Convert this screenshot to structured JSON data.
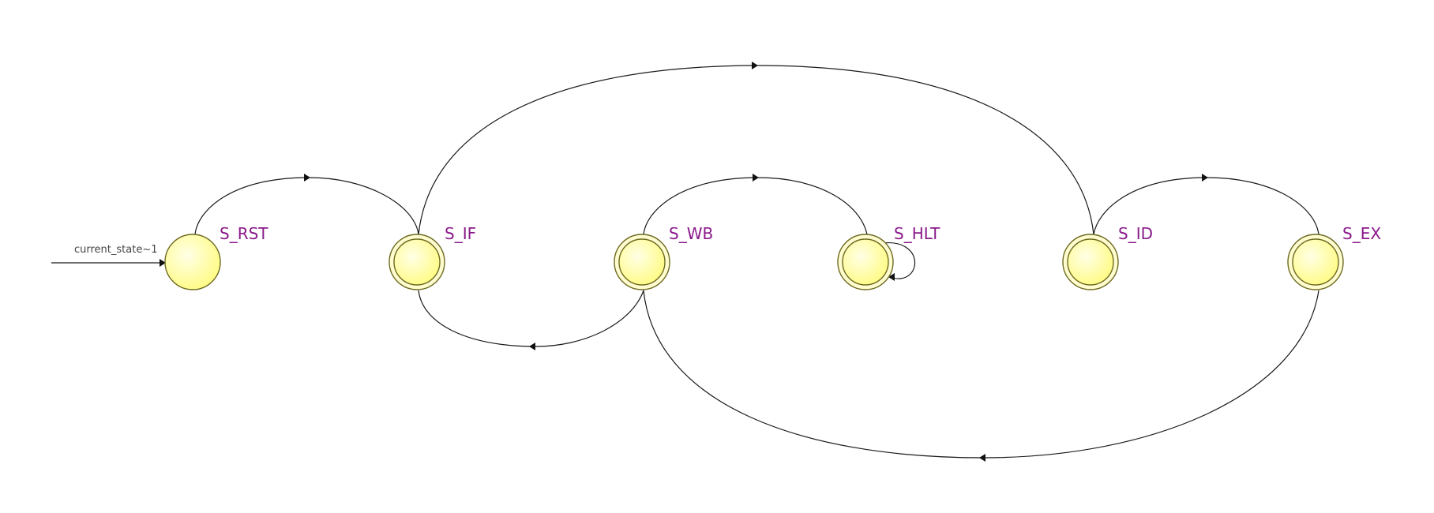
{
  "diagram": {
    "type": "state-machine",
    "reset_label": "current_state~1",
    "colors": {
      "state_fill": "#fffb86",
      "state_highlight": "#ffffe6",
      "state_stroke": "#6d6a22",
      "label": "#8a1a8a",
      "edge": "#1a1a1a"
    },
    "states": [
      {
        "id": "S_RST",
        "label": "S_RST",
        "double": false
      },
      {
        "id": "S_IF",
        "label": "S_IF",
        "double": true
      },
      {
        "id": "S_WB",
        "label": "S_WB",
        "double": true
      },
      {
        "id": "S_HLT",
        "label": "S_HLT",
        "double": true
      },
      {
        "id": "S_ID",
        "label": "S_ID",
        "double": true
      },
      {
        "id": "S_EX",
        "label": "S_EX",
        "double": true
      }
    ],
    "transitions": [
      {
        "from": "S_RST",
        "to": "S_IF"
      },
      {
        "from": "S_IF",
        "to": "S_ID"
      },
      {
        "from": "S_ID",
        "to": "S_EX"
      },
      {
        "from": "S_EX",
        "to": "S_WB"
      },
      {
        "from": "S_WB",
        "to": "S_IF"
      },
      {
        "from": "S_WB",
        "to": "S_HLT"
      },
      {
        "from": "S_HLT",
        "to": "S_HLT"
      }
    ]
  }
}
